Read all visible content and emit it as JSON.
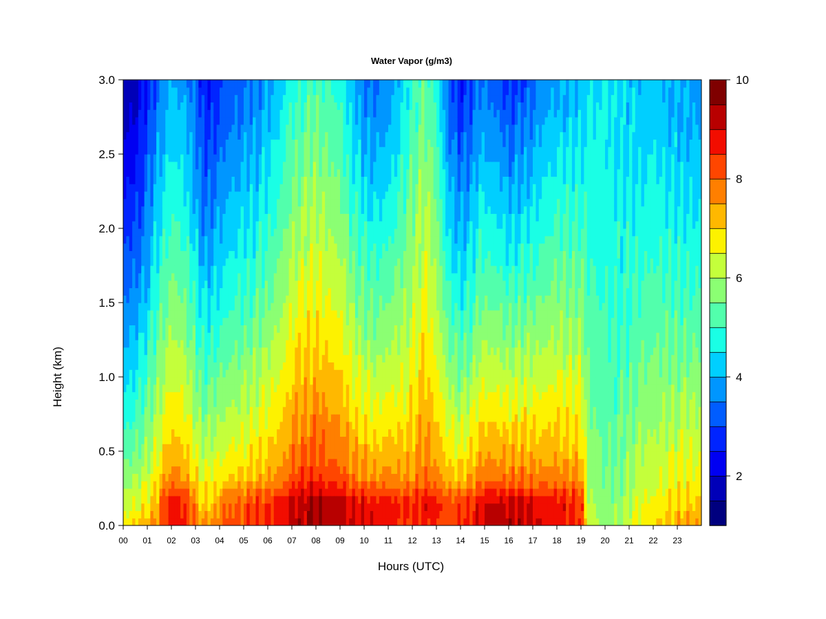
{
  "chart_data": {
    "type": "heatmap",
    "title": "Water Vapor (g/m3)",
    "xlabel": "Hours (UTC)",
    "ylabel": "Height (km)",
    "xlim": [
      0,
      24
    ],
    "ylim": [
      0.0,
      3.0
    ],
    "x_tick_labels": [
      "00",
      "01",
      "02",
      "03",
      "04",
      "05",
      "06",
      "07",
      "08",
      "09",
      "10",
      "11",
      "12",
      "13",
      "14",
      "15",
      "16",
      "17",
      "18",
      "19",
      "20",
      "21",
      "22",
      "23"
    ],
    "y_ticks": [
      0.0,
      0.5,
      1.0,
      1.5,
      2.0,
      2.5,
      3.0
    ],
    "y_tick_labels": [
      "0.0",
      "0.5",
      "1.0",
      "1.5",
      "2.0",
      "2.5",
      "3.0"
    ],
    "colorbar": {
      "min": 1,
      "max": 10,
      "ticks": [
        2,
        4,
        6,
        8,
        10
      ],
      "tick_labels": [
        "2",
        "4",
        "6",
        "8",
        "10"
      ],
      "colors": [
        "#00007F",
        "#0000B8",
        "#0000F2",
        "#0024FF",
        "#005DFF",
        "#0096FF",
        "#00CFFF",
        "#1AFFE5",
        "#52FFAC",
        "#8BFF73",
        "#C4FF3B",
        "#FDF200",
        "#FFB800",
        "#FF7F00",
        "#FF4600",
        "#F20D00",
        "#B80000",
        "#7F0000"
      ]
    },
    "grid": false,
    "legend": "colorbar-right",
    "hourly_profile": {
      "hours": [
        0.0,
        0.5,
        1.0,
        1.5,
        2.0,
        2.5,
        3.0,
        3.25,
        3.5,
        4.0,
        4.5,
        5.0,
        5.5,
        6.0,
        6.5,
        6.8,
        7.0,
        7.5,
        8.0,
        8.5,
        9.0,
        9.5,
        10.0,
        10.5,
        11.0,
        11.5,
        12.0,
        12.5,
        13.0,
        13.5,
        14.0,
        14.5,
        14.8,
        15.0,
        15.5,
        16.0,
        16.5,
        17.0,
        17.5,
        18.0,
        18.5,
        19.0,
        19.3,
        19.5,
        20.0,
        20.5,
        21.0,
        21.5,
        22.0,
        22.5,
        23.0,
        23.5,
        24.0
      ],
      "surface": [
        7.0,
        7.2,
        7.5,
        8.0,
        8.8,
        8.6,
        8.0,
        7.8,
        7.9,
        8.0,
        8.1,
        8.2,
        8.4,
        8.5,
        8.7,
        8.8,
        9.2,
        9.3,
        9.4,
        9.3,
        9.2,
        9.0,
        9.0,
        8.8,
        8.9,
        8.5,
        8.3,
        8.7,
        8.5,
        8.4,
        8.5,
        8.8,
        9.0,
        9.2,
        9.3,
        9.4,
        9.3,
        9.1,
        8.9,
        8.9,
        8.7,
        8.6,
        6.5,
        6.3,
        5.8,
        6.0,
        6.4,
        6.9,
        7.0,
        7.3,
        7.5,
        7.6,
        7.6
      ],
      "top": [
        1.5,
        1.8,
        2.5,
        3.5,
        4.0,
        3.8,
        3.2,
        2.6,
        2.4,
        2.8,
        3.2,
        3.3,
        3.5,
        3.8,
        4.2,
        4.6,
        4.8,
        5.0,
        5.2,
        5.0,
        4.8,
        4.0,
        3.5,
        3.4,
        3.6,
        4.2,
        4.9,
        5.4,
        4.8,
        3.2,
        2.6,
        2.9,
        3.5,
        3.4,
        3.2,
        2.8,
        3.0,
        3.3,
        3.7,
        3.9,
        3.9,
        4.1,
        4.4,
        4.4,
        4.5,
        4.3,
        4.2,
        4.1,
        4.2,
        4.0,
        3.9,
        3.8,
        3.7
      ]
    }
  }
}
